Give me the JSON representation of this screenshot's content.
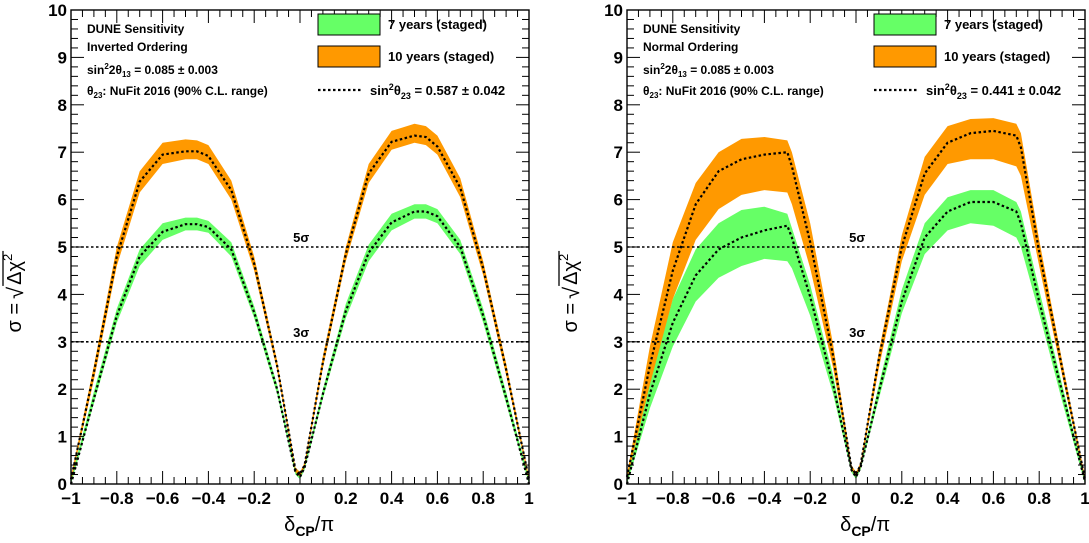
{
  "chart_data": [
    {
      "type": "area",
      "title": "",
      "xlabel": "δCP/π",
      "ylabel": "σ = √Δχ²",
      "xlim": [
        -1,
        1
      ],
      "ylim": [
        0,
        10
      ],
      "x_ticks": [
        -1,
        -0.8,
        -0.6,
        -0.4,
        -0.2,
        0,
        0.2,
        0.4,
        0.6,
        0.8,
        1
      ],
      "x_tick_labels": [
        "−1",
        "−0.8",
        "−0.6",
        "−0.4",
        "−0.2",
        "0",
        "0.2",
        "0.4",
        "0.6",
        "0.8",
        "1"
      ],
      "y_ticks": [
        0,
        1,
        2,
        3,
        4,
        5,
        6,
        7,
        8,
        9,
        10
      ],
      "y_tick_labels": [
        "0",
        "1",
        "2",
        "3",
        "4",
        "5",
        "6",
        "7",
        "8",
        "9",
        "10"
      ],
      "grid": false,
      "legend_position": "top-right",
      "text_lines": [
        "DUNE Sensitivity",
        "Inverted Ordering",
        "sin²2θ₁₃ = 0.085 ± 0.003",
        "θ₂₃: NuFit 2016 (90% C.L. range)"
      ],
      "reference_lines": [
        {
          "y": 5,
          "label": "5σ",
          "label_x": -0.03
        },
        {
          "y": 3,
          "label": "3σ",
          "label_x": -0.03
        }
      ],
      "x": [
        -1,
        -0.9,
        -0.8,
        -0.7,
        -0.6,
        -0.5,
        -0.45,
        -0.4,
        -0.3,
        -0.2,
        -0.1,
        -0.02,
        0,
        0.02,
        0.1,
        0.2,
        0.3,
        0.4,
        0.5,
        0.55,
        0.6,
        0.7,
        0.8,
        0.9,
        1
      ],
      "series": [
        {
          "name": "7 years (staged)",
          "color": "#66ff66",
          "lower": [
            0,
            1.7,
            3.4,
            4.6,
            5.15,
            5.35,
            5.35,
            5.3,
            4.8,
            3.5,
            1.9,
            0.2,
            0.1,
            0.3,
            1.8,
            3.5,
            4.7,
            5.35,
            5.6,
            5.6,
            5.5,
            4.85,
            3.4,
            1.7,
            0
          ],
          "upper": [
            0.1,
            1.95,
            3.7,
            4.95,
            5.5,
            5.62,
            5.62,
            5.55,
            5.1,
            3.75,
            2.1,
            0.3,
            0.2,
            0.4,
            2.0,
            3.8,
            5.05,
            5.7,
            5.9,
            5.9,
            5.8,
            5.15,
            3.7,
            1.95,
            0.1
          ]
        },
        {
          "name": "10 years (staged)",
          "color": "#ff9900",
          "lower": [
            0.05,
            2.2,
            4.6,
            6.15,
            6.75,
            6.85,
            6.85,
            6.75,
            6.0,
            4.5,
            2.4,
            0.25,
            0.15,
            0.35,
            2.45,
            4.7,
            6.35,
            7.05,
            7.2,
            7.15,
            6.95,
            6.05,
            4.4,
            2.3,
            0.05
          ],
          "upper": [
            0.15,
            2.5,
            5.0,
            6.6,
            7.2,
            7.27,
            7.25,
            7.15,
            6.4,
            4.8,
            2.6,
            0.35,
            0.25,
            0.45,
            2.7,
            5.0,
            6.75,
            7.45,
            7.6,
            7.55,
            7.35,
            6.45,
            4.7,
            2.55,
            0.15
          ]
        },
        {
          "name": "sin²θ₂₃ = 0.587 ± 0.042",
          "style": "dotted",
          "color": "#000000",
          "curves": [
            [
              0,
              1.8,
              3.55,
              4.8,
              5.32,
              5.48,
              5.48,
              5.42,
              4.95,
              3.62,
              2.0,
              0.25,
              0.15,
              0.35,
              1.9,
              3.65,
              4.88,
              5.52,
              5.75,
              5.75,
              5.65,
              5.0,
              3.55,
              1.82,
              0
            ],
            [
              0.1,
              2.35,
              4.8,
              6.38,
              6.95,
              7.02,
              7.02,
              6.92,
              6.2,
              4.65,
              2.5,
              0.3,
              0.2,
              0.4,
              2.57,
              4.85,
              6.55,
              7.22,
              7.35,
              7.32,
              7.12,
              6.25,
              4.55,
              2.42,
              0.1
            ]
          ]
        }
      ]
    },
    {
      "type": "area",
      "title": "",
      "xlabel": "δCP/π",
      "ylabel": "σ = √Δχ²",
      "xlim": [
        -1,
        1
      ],
      "ylim": [
        0,
        10
      ],
      "x_ticks": [
        -1,
        -0.8,
        -0.6,
        -0.4,
        -0.2,
        0,
        0.2,
        0.4,
        0.6,
        0.8,
        1
      ],
      "x_tick_labels": [
        "−1",
        "−0.8",
        "−0.6",
        "−0.4",
        "−0.2",
        "0",
        "0.2",
        "0.4",
        "0.6",
        "0.8",
        "1"
      ],
      "y_ticks": [
        0,
        1,
        2,
        3,
        4,
        5,
        6,
        7,
        8,
        9,
        10
      ],
      "y_tick_labels": [
        "0",
        "1",
        "2",
        "3",
        "4",
        "5",
        "6",
        "7",
        "8",
        "9",
        "10"
      ],
      "grid": false,
      "legend_position": "top-right",
      "text_lines": [
        "DUNE Sensitivity",
        "Normal Ordering",
        "sin²2θ₁₃ = 0.085 ± 0.003",
        "θ₂₃: NuFit 2016 (90% C.L. range)"
      ],
      "reference_lines": [
        {
          "y": 5,
          "label": "5σ",
          "label_x": -0.03
        },
        {
          "y": 3,
          "label": "3σ",
          "label_x": -0.03
        }
      ],
      "x": [
        -1,
        -0.9,
        -0.8,
        -0.7,
        -0.6,
        -0.5,
        -0.4,
        -0.3,
        -0.28,
        -0.2,
        -0.1,
        -0.02,
        0,
        0.02,
        0.1,
        0.2,
        0.3,
        0.4,
        0.5,
        0.6,
        0.7,
        0.72,
        0.8,
        0.9,
        1
      ],
      "series": [
        {
          "name": "7 years (staged)",
          "color": "#66ff66",
          "lower": [
            0,
            1.6,
            2.9,
            3.85,
            4.35,
            4.6,
            4.75,
            4.7,
            4.55,
            3.55,
            1.9,
            0.25,
            0.1,
            0.3,
            1.8,
            3.6,
            4.85,
            5.35,
            5.5,
            5.45,
            5.2,
            5.0,
            3.6,
            1.75,
            0
          ],
          "upper": [
            0.1,
            2.2,
            3.9,
            4.95,
            5.5,
            5.78,
            5.85,
            5.7,
            5.4,
            4.2,
            2.3,
            0.35,
            0.2,
            0.4,
            2.1,
            4.1,
            5.5,
            6.05,
            6.2,
            6.2,
            5.95,
            5.75,
            4.1,
            2.1,
            0.1
          ]
        },
        {
          "name": "10 years (staged)",
          "color": "#ff9900",
          "lower": [
            0.1,
            2.1,
            3.9,
            5.15,
            5.8,
            6.1,
            6.2,
            6.15,
            5.9,
            4.55,
            2.45,
            0.3,
            0.15,
            0.35,
            2.45,
            4.7,
            6.1,
            6.75,
            6.85,
            6.85,
            6.7,
            6.5,
            4.6,
            2.3,
            0.05
          ],
          "upper": [
            0.2,
            2.9,
            5.1,
            6.35,
            7.0,
            7.28,
            7.32,
            7.25,
            7.0,
            5.5,
            2.95,
            0.4,
            0.25,
            0.45,
            2.8,
            5.25,
            6.9,
            7.55,
            7.7,
            7.72,
            7.6,
            7.4,
            5.15,
            2.6,
            0.15
          ]
        },
        {
          "name": "sin²θ₂₃ = 0.441 ± 0.042",
          "style": "dotted",
          "color": "#000000",
          "curves": [
            [
              0,
              1.9,
              3.4,
              4.4,
              4.95,
              5.2,
              5.35,
              5.45,
              5.2,
              3.95,
              2.1,
              0.3,
              0.15,
              0.35,
              1.95,
              3.85,
              5.2,
              5.75,
              5.95,
              5.95,
              5.75,
              5.5,
              3.85,
              1.95,
              0.05
            ],
            [
              0.15,
              2.5,
              4.5,
              5.9,
              6.6,
              6.85,
              6.95,
              7.0,
              6.7,
              5.1,
              2.7,
              0.35,
              0.2,
              0.4,
              2.65,
              5.0,
              6.55,
              7.2,
              7.4,
              7.45,
              7.35,
              7.1,
              4.9,
              2.45,
              0.1
            ]
          ]
        }
      ]
    }
  ]
}
